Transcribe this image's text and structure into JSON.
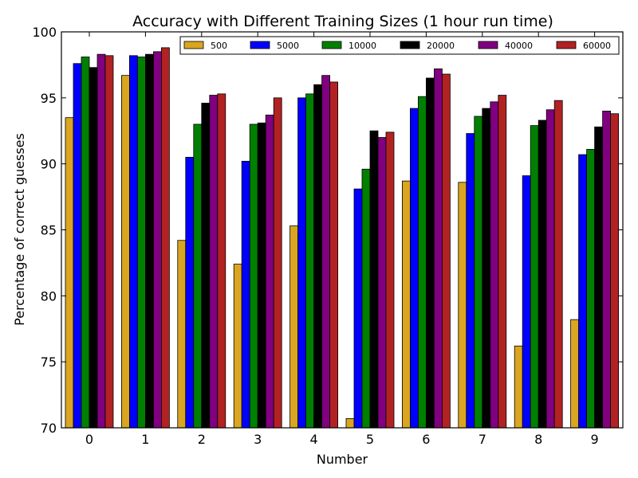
{
  "chart_data": {
    "type": "bar",
    "title": "Accuracy with Different Training Sizes (1 hour run time)",
    "xlabel": "Number",
    "ylabel": "Percentage of correct guesses",
    "ylim": [
      70,
      100
    ],
    "yticks": [
      "70",
      "75",
      "80",
      "85",
      "90",
      "95",
      "100"
    ],
    "categories": [
      "0",
      "1",
      "2",
      "3",
      "4",
      "5",
      "6",
      "7",
      "8",
      "9"
    ],
    "legend_position": "top-right",
    "grid": false,
    "series": [
      {
        "name": "500",
        "color": "#daa520",
        "values": [
          93.5,
          96.7,
          84.2,
          82.4,
          85.3,
          70.7,
          88.7,
          88.6,
          76.2,
          78.2
        ]
      },
      {
        "name": "5000",
        "color": "#0000ff",
        "values": [
          97.6,
          98.2,
          90.5,
          90.2,
          95.0,
          88.1,
          94.2,
          92.3,
          89.1,
          90.7
        ]
      },
      {
        "name": "10000",
        "color": "#008000",
        "values": [
          98.1,
          98.1,
          93.0,
          93.0,
          95.3,
          89.6,
          95.1,
          93.6,
          92.9,
          91.1
        ]
      },
      {
        "name": "20000",
        "color": "#000000",
        "values": [
          97.3,
          98.3,
          94.6,
          93.1,
          96.0,
          92.5,
          96.5,
          94.2,
          93.3,
          92.8
        ]
      },
      {
        "name": "40000",
        "color": "#800080",
        "values": [
          98.3,
          98.5,
          95.2,
          93.7,
          96.7,
          92.0,
          97.2,
          94.7,
          94.1,
          94.0
        ]
      },
      {
        "name": "60000",
        "color": "#b22222",
        "values": [
          98.2,
          98.8,
          95.3,
          95.0,
          96.2,
          92.4,
          96.8,
          95.2,
          94.8,
          93.8
        ]
      }
    ]
  }
}
